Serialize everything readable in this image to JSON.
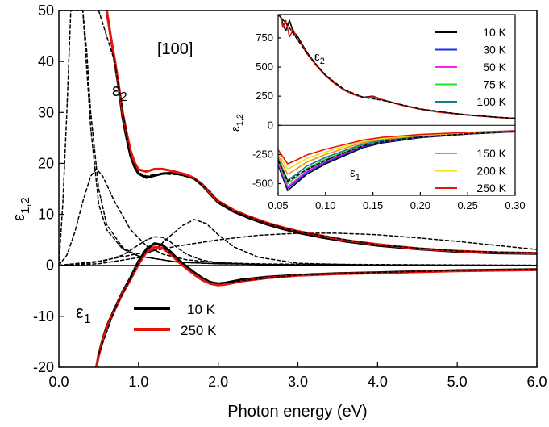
{
  "chart_data": [
    {
      "type": "line",
      "xlabel": "Photon energy (eV)",
      "ylabel_main": "ε",
      "ylabel_sub": "1,2",
      "xlim": [
        0.0,
        6.0
      ],
      "ylim": [
        -20,
        50
      ],
      "xticks": [
        "0.0",
        "1.0",
        "2.0",
        "3.0",
        "4.0",
        "5.0",
        "6.0"
      ],
      "yticks": [
        "-20",
        "-10",
        "0",
        "10",
        "20",
        "30",
        "40",
        "50"
      ],
      "annotations": {
        "direction": "[100]",
        "eps2_main": "ε",
        "eps2_sub": "2",
        "eps1_main": "ε",
        "eps1_sub": "1"
      },
      "legend": {
        "placement": "lower-left",
        "entries": [
          {
            "label": "10 K",
            "color": "#000000"
          },
          {
            "label": "250 K",
            "color": "#e8130b"
          }
        ]
      },
      "series": [
        {
          "name": "10 K",
          "color": "#000000",
          "component": "eps2",
          "x": [
            0.6,
            0.65,
            0.7,
            0.75,
            0.8,
            0.85,
            0.9,
            0.95,
            1.0,
            1.1,
            1.2,
            1.3,
            1.4,
            1.5,
            1.6,
            1.7,
            1.8,
            1.9,
            2.0,
            2.2,
            2.4,
            2.6,
            2.8,
            3.0,
            3.3,
            3.6,
            4.0,
            4.5,
            5.0,
            5.5,
            6.0
          ],
          "y": [
            50,
            45,
            40,
            35,
            29,
            25,
            21.5,
            19.3,
            18,
            17.2,
            17.6,
            18,
            18.1,
            17.9,
            17.6,
            17.0,
            15.7,
            14.0,
            12.3,
            10.5,
            9.2,
            8.1,
            7.2,
            6.4,
            5.5,
            4.7,
            3.9,
            3.2,
            2.7,
            2.4,
            2.3
          ]
        },
        {
          "name": "250 K",
          "color": "#e8130b",
          "component": "eps2",
          "x": [
            0.6,
            0.65,
            0.7,
            0.75,
            0.8,
            0.85,
            0.9,
            0.95,
            1.0,
            1.1,
            1.2,
            1.3,
            1.4,
            1.5,
            1.6,
            1.7,
            1.8,
            1.9,
            2.0,
            2.2,
            2.4,
            2.6,
            2.8,
            3.0,
            3.3,
            3.6,
            4.0,
            4.5,
            5.0,
            5.5,
            6.0
          ],
          "y": [
            50,
            45,
            40.5,
            35.5,
            30,
            26,
            22.5,
            20.2,
            18.8,
            18.4,
            18.9,
            18.9,
            18.6,
            18.2,
            17.8,
            17.1,
            15.9,
            14.2,
            12.6,
            10.8,
            9.5,
            8.4,
            7.5,
            6.7,
            5.8,
            4.9,
            4.1,
            3.3,
            2.8,
            2.5,
            2.4
          ]
        },
        {
          "name": "10 K",
          "color": "#000000",
          "component": "eps1",
          "x": [
            0.47,
            0.5,
            0.55,
            0.6,
            0.7,
            0.8,
            0.9,
            1.0,
            1.1,
            1.2,
            1.3,
            1.4,
            1.5,
            1.6,
            1.7,
            1.8,
            1.9,
            2.0,
            2.1,
            2.3,
            2.6,
            3.0,
            3.5,
            4.0,
            4.5,
            5.0,
            5.5,
            6.0
          ],
          "y": [
            -20,
            -17.5,
            -14.5,
            -12,
            -8.5,
            -5.2,
            -2.4,
            0.8,
            3.2,
            4.3,
            4.0,
            2.7,
            1.1,
            -0.2,
            -1.4,
            -2.5,
            -3.3,
            -3.6,
            -3.4,
            -2.8,
            -2.3,
            -1.9,
            -1.6,
            -1.4,
            -1.2,
            -1.0,
            -0.9,
            -0.8
          ]
        },
        {
          "name": "250 K",
          "color": "#e8130b",
          "component": "eps1",
          "x": [
            0.47,
            0.5,
            0.55,
            0.6,
            0.7,
            0.8,
            0.9,
            1.0,
            1.1,
            1.2,
            1.3,
            1.4,
            1.5,
            1.6,
            1.7,
            1.8,
            1.9,
            2.0,
            2.1,
            2.3,
            2.6,
            3.0,
            3.5,
            4.0,
            4.5,
            5.0,
            5.5,
            6.0
          ],
          "y": [
            -20,
            -17.8,
            -14.8,
            -12.3,
            -8.8,
            -5.5,
            -2.8,
            0.2,
            2.6,
            3.6,
            3.4,
            2.2,
            0.7,
            -0.6,
            -1.8,
            -2.9,
            -3.6,
            -3.9,
            -3.7,
            -3.1,
            -2.5,
            -2.0,
            -1.7,
            -1.5,
            -1.3,
            -1.1,
            -1.0,
            -0.9
          ]
        },
        {
          "component": "fit",
          "x": [
            0.5,
            0.7,
            0.9,
            1.0,
            1.1,
            1.2,
            1.3,
            1.5,
            1.7,
            1.9,
            2.0,
            2.2,
            2.6,
            3.0,
            4.0,
            5.0,
            6.0
          ],
          "y": [
            50,
            40,
            21,
            18.2,
            17.5,
            17.8,
            17.9,
            17.8,
            17.0,
            14.5,
            12.6,
            10.6,
            8.3,
            6.6,
            4.0,
            2.8,
            2.4
          ]
        },
        {
          "component": "fit",
          "x": [
            0.5,
            0.7,
            0.9,
            1.0,
            1.1,
            1.2,
            1.3,
            1.5,
            1.7,
            1.9,
            2.0,
            2.3,
            3.0,
            4.0,
            5.0,
            6.0
          ],
          "y": [
            -17.5,
            -8.7,
            -2.6,
            0.5,
            3.0,
            4.1,
            3.8,
            1.0,
            -1.5,
            -3.2,
            -3.6,
            -3.0,
            -1.9,
            -1.4,
            -1.0,
            -0.8
          ]
        },
        {
          "component": "oscillator",
          "x": [
            0.0,
            0.05,
            0.1,
            0.15,
            0.2,
            0.25,
            0.3,
            0.35,
            0.4,
            0.5,
            0.6,
            0.8,
            1.0,
            1.5,
            2.0,
            3.0,
            6.0
          ],
          "y": [
            0,
            12,
            30,
            50,
            50,
            50,
            50,
            42,
            30,
            15,
            8,
            3.5,
            1.8,
            0.6,
            0.3,
            0.1,
            0
          ]
        },
        {
          "component": "oscillator",
          "x": [
            0.0,
            0.1,
            0.2,
            0.3,
            0.4,
            0.47,
            0.55,
            0.7,
            0.9,
            1.1,
            1.3,
            1.6,
            2.0,
            3.0,
            6.0
          ],
          "y": [
            0,
            2,
            6.5,
            12.5,
            17.5,
            18.9,
            17.5,
            12.5,
            7,
            3.8,
            2.2,
            1.1,
            0.5,
            0.1,
            0
          ]
        },
        {
          "component": "oscillator",
          "x": [
            0.0,
            0.1,
            0.2,
            0.3,
            0.4,
            0.5,
            0.6,
            0.8,
            1.0,
            1.5,
            2.0,
            6.0
          ],
          "y": [
            50,
            50,
            50,
            50,
            27,
            12,
            7,
            3.2,
            1.8,
            0.6,
            0.3,
            0
          ]
        },
        {
          "component": "oscillator",
          "x": [
            0.0,
            0.2,
            0.4,
            0.6,
            0.8,
            1.0,
            1.1,
            1.2,
            1.3,
            1.4,
            1.5,
            1.6,
            1.8,
            2.0,
            2.5,
            3.0
          ],
          "y": [
            0,
            0.2,
            0.5,
            1.0,
            2.0,
            4.0,
            5.0,
            5.6,
            5.5,
            4.6,
            3.3,
            2.2,
            1.0,
            0.5,
            0.15,
            0
          ]
        },
        {
          "component": "oscillator",
          "x": [
            0.0,
            0.5,
            1.0,
            1.2,
            1.4,
            1.55,
            1.7,
            1.85,
            2.0,
            2.2,
            2.5,
            3.0,
            4.0
          ],
          "y": [
            0,
            0.3,
            1.5,
            3,
            5.8,
            7.8,
            9,
            8.2,
            6,
            3.6,
            1.6,
            0.4,
            0
          ]
        },
        {
          "component": "oscillator",
          "x": [
            0.0,
            0.5,
            1.0,
            1.5,
            2.0,
            2.5,
            3.0,
            3.5,
            4.0,
            4.5,
            5.0,
            5.5,
            6.0
          ],
          "y": [
            0,
            0.8,
            2.3,
            3.8,
            5,
            5.9,
            6.3,
            6.3,
            6.0,
            5.4,
            4.7,
            3.9,
            3.1
          ]
        }
      ]
    },
    {
      "type": "line",
      "inset": true,
      "xlim": [
        0.05,
        0.3
      ],
      "ylim": [
        -600,
        950
      ],
      "ylabel_main": "ε",
      "ylabel_sub": "1,2",
      "xticks": [
        "0.05",
        "0.10",
        "0.15",
        "0.20",
        "0.25",
        "0.30"
      ],
      "yticks": [
        "-500",
        "-250",
        "0",
        "250",
        "500",
        "750"
      ],
      "annotations": {
        "eps2_main": "ε",
        "eps2_sub": "2",
        "eps1_main": "ε",
        "eps1_sub": "1"
      },
      "legend_upper": [
        {
          "label": "10 K",
          "color": "#000000"
        },
        {
          "label": "30 K",
          "color": "#1c2cf0"
        },
        {
          "label": "50 K",
          "color": "#ff1ef0"
        },
        {
          "label": "75 K",
          "color": "#1fe01f"
        },
        {
          "label": "100 K",
          "color": "#147a8e"
        }
      ],
      "legend_lower": [
        {
          "label": "150 K",
          "color": "#f08a20"
        },
        {
          "label": "200 K",
          "color": "#f0e020"
        },
        {
          "label": "250 K",
          "color": "#e8130b"
        }
      ],
      "series": [
        {
          "name": "10 K",
          "color": "#000000",
          "component": "eps2",
          "x": [
            0.052,
            0.055,
            0.058,
            0.062,
            0.066,
            0.07,
            0.075,
            0.08,
            0.09,
            0.1,
            0.11,
            0.12,
            0.13,
            0.14,
            0.15,
            0.16,
            0.18,
            0.2,
            0.22,
            0.25,
            0.28,
            0.3
          ],
          "y": [
            950,
            870,
            810,
            900,
            800,
            770,
            700,
            630,
            520,
            430,
            360,
            305,
            265,
            240,
            250,
            220,
            175,
            140,
            115,
            90,
            70,
            60
          ]
        },
        {
          "name": "250 K",
          "color": "#e8130b",
          "component": "eps2",
          "x": [
            0.052,
            0.055,
            0.058,
            0.062,
            0.066,
            0.07,
            0.075,
            0.08,
            0.09,
            0.1,
            0.11,
            0.12,
            0.13,
            0.14,
            0.15,
            0.16,
            0.18,
            0.2,
            0.22,
            0.25,
            0.28,
            0.3
          ],
          "y": [
            950,
            840,
            900,
            760,
            820,
            740,
            690,
            620,
            515,
            425,
            355,
            300,
            262,
            238,
            245,
            218,
            172,
            138,
            112,
            88,
            68,
            58
          ]
        },
        {
          "name": "10 K",
          "color": "#000000",
          "component": "eps1",
          "x": [
            0.05,
            0.06,
            0.07,
            0.08,
            0.1,
            0.12,
            0.14,
            0.16,
            0.2,
            0.25,
            0.3
          ],
          "y": [
            -340,
            -560,
            -490,
            -420,
            -330,
            -260,
            -190,
            -150,
            -105,
            -75,
            -55
          ]
        },
        {
          "name": "30 K",
          "color": "#1c2cf0",
          "component": "eps1",
          "x": [
            0.05,
            0.06,
            0.07,
            0.08,
            0.1,
            0.12,
            0.14,
            0.16,
            0.2,
            0.25,
            0.3
          ],
          "y": [
            -330,
            -540,
            -475,
            -405,
            -318,
            -250,
            -182,
            -145,
            -102,
            -73,
            -54
          ]
        },
        {
          "name": "50 K",
          "color": "#ff1ef0",
          "component": "eps1",
          "x": [
            0.05,
            0.06,
            0.07,
            0.08,
            0.1,
            0.12,
            0.14,
            0.16,
            0.2,
            0.25,
            0.3
          ],
          "y": [
            -320,
            -525,
            -460,
            -390,
            -305,
            -240,
            -175,
            -140,
            -100,
            -72,
            -53
          ]
        },
        {
          "name": "75 K",
          "color": "#1fe01f",
          "component": "eps1",
          "x": [
            0.05,
            0.06,
            0.07,
            0.08,
            0.1,
            0.12,
            0.14,
            0.16,
            0.2,
            0.25,
            0.3
          ],
          "y": [
            -300,
            -500,
            -440,
            -370,
            -290,
            -228,
            -168,
            -134,
            -97,
            -70,
            -52
          ]
        },
        {
          "name": "100 K",
          "color": "#147a8e",
          "component": "eps1",
          "x": [
            0.05,
            0.06,
            0.07,
            0.08,
            0.1,
            0.12,
            0.14,
            0.16,
            0.2,
            0.25,
            0.3
          ],
          "y": [
            -285,
            -470,
            -415,
            -350,
            -275,
            -216,
            -160,
            -128,
            -93,
            -68,
            -51
          ]
        },
        {
          "name": "150 K",
          "color": "#f08a20",
          "component": "eps1",
          "x": [
            0.05,
            0.06,
            0.07,
            0.08,
            0.1,
            0.12,
            0.14,
            0.16,
            0.2,
            0.25,
            0.3
          ],
          "y": [
            -260,
            -420,
            -370,
            -315,
            -250,
            -197,
            -147,
            -118,
            -88,
            -65,
            -49
          ]
        },
        {
          "name": "200 K",
          "color": "#f0e020",
          "component": "eps1",
          "x": [
            0.05,
            0.06,
            0.07,
            0.08,
            0.1,
            0.12,
            0.14,
            0.16,
            0.2,
            0.25,
            0.3
          ],
          "y": [
            -235,
            -375,
            -330,
            -285,
            -228,
            -180,
            -135,
            -110,
            -83,
            -62,
            -48
          ]
        },
        {
          "name": "250 K",
          "color": "#e8130b",
          "component": "eps1",
          "x": [
            0.05,
            0.06,
            0.07,
            0.08,
            0.1,
            0.12,
            0.14,
            0.16,
            0.2,
            0.25,
            0.3
          ],
          "y": [
            -210,
            -330,
            -295,
            -255,
            -205,
            -165,
            -125,
            -102,
            -78,
            -60,
            -46
          ]
        },
        {
          "component": "fit",
          "x": [
            0.05,
            0.06,
            0.08,
            0.1,
            0.12,
            0.14,
            0.16,
            0.2,
            0.25,
            0.3
          ],
          "y": [
            950,
            860,
            620,
            430,
            305,
            240,
            215,
            140,
            88,
            58
          ]
        },
        {
          "component": "fit",
          "x": [
            0.05,
            0.06,
            0.08,
            0.1,
            0.12,
            0.14,
            0.16,
            0.2,
            0.25,
            0.3
          ],
          "y": [
            -300,
            -480,
            -380,
            -300,
            -235,
            -175,
            -140,
            -100,
            -72,
            -53
          ]
        }
      ]
    }
  ]
}
